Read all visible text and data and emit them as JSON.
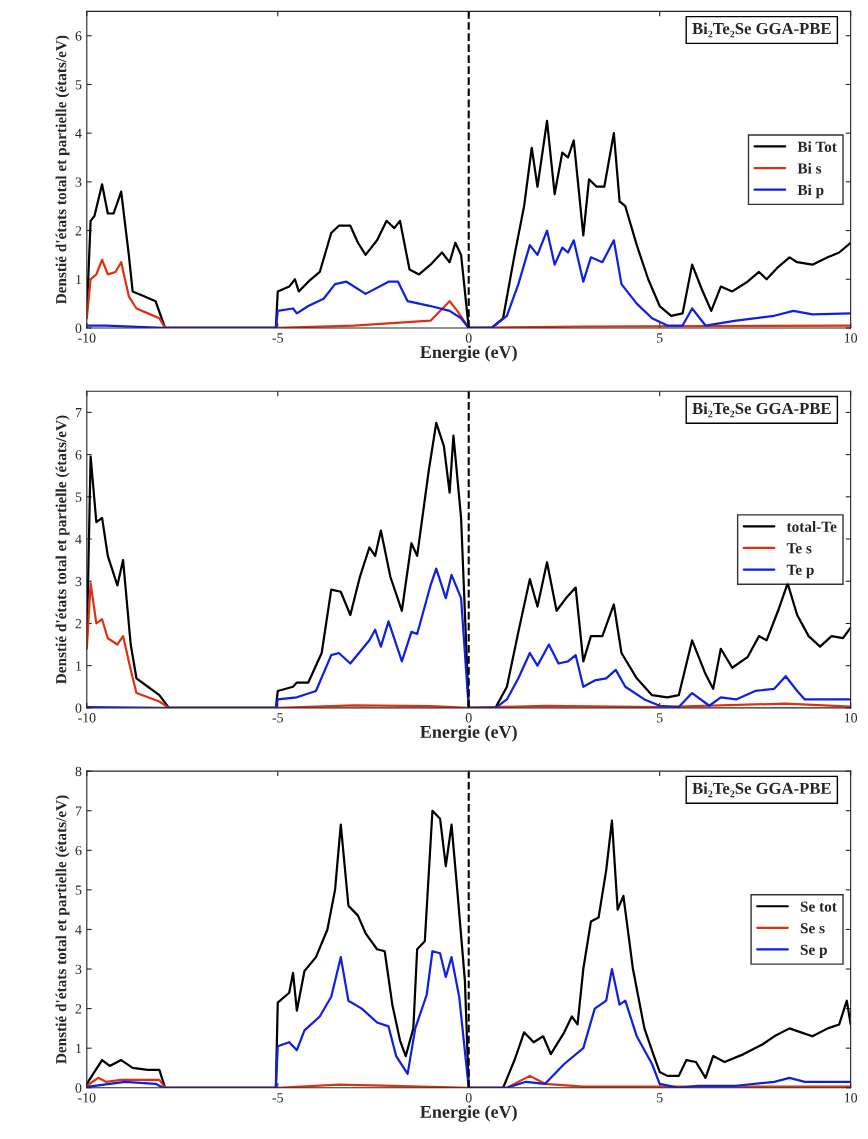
{
  "chart_data": [
    {
      "type": "line",
      "xlabel": "Energie (eV)",
      "ylabel": "Denstié d'états total et partielle (états/eV)",
      "xlim": [
        -10,
        10
      ],
      "xticks": [
        -10,
        -5,
        0,
        5,
        10
      ],
      "ylim": [
        0,
        6.5
      ],
      "yticks": [
        0,
        1,
        2,
        3,
        4,
        5,
        6
      ],
      "legend": "right",
      "annotations": [
        "Bi₂Te₂Se GGA-PBE"
      ],
      "ref_lines": [
        {
          "axis": "x",
          "value": 0,
          "color": "#000000",
          "line_style": "dashed"
        }
      ],
      "series": [
        {
          "name": "Bi Tot",
          "color": "#000000",
          "x": [
            -10,
            -9.9,
            -9.8,
            -9.6,
            -9.45,
            -9.3,
            -9.1,
            -8.9,
            -8.8,
            -8.5,
            -8.2,
            -7.95,
            -5.05,
            -5.0,
            -4.7,
            -4.55,
            -4.45,
            -4.2,
            -3.9,
            -3.6,
            -3.4,
            -3.1,
            -2.9,
            -2.7,
            -2.4,
            -2.15,
            -1.95,
            -1.8,
            -1.55,
            -1.3,
            -1.0,
            -0.7,
            -0.5,
            -0.35,
            -0.2,
            0,
            0.6,
            0.9,
            1.2,
            1.45,
            1.65,
            1.8,
            2.05,
            2.25,
            2.45,
            2.6,
            2.75,
            3.0,
            3.15,
            3.35,
            3.55,
            3.8,
            3.95,
            4.1,
            4.4,
            4.7,
            5.0,
            5.3,
            5.6,
            5.85,
            6.1,
            6.35,
            6.6,
            6.9,
            7.3,
            7.6,
            7.8,
            8.1,
            8.4,
            8.6,
            9.0,
            9.4,
            9.7,
            10
          ],
          "values": [
            0.3,
            2.2,
            2.3,
            2.95,
            2.35,
            2.35,
            2.8,
            1.5,
            0.75,
            0.65,
            0.55,
            0,
            0,
            0.75,
            0.85,
            1.0,
            0.75,
            0.95,
            1.15,
            1.95,
            2.1,
            2.1,
            1.75,
            1.5,
            1.8,
            2.2,
            2.05,
            2.2,
            1.2,
            1.1,
            1.3,
            1.55,
            1.35,
            1.75,
            1.5,
            0,
            0,
            0.2,
            1.5,
            2.5,
            3.7,
            2.9,
            4.25,
            2.75,
            3.6,
            3.5,
            3.85,
            1.9,
            3.05,
            2.9,
            2.9,
            4.0,
            2.6,
            2.5,
            1.7,
            1.0,
            0.45,
            0.25,
            0.3,
            1.3,
            0.8,
            0.35,
            0.85,
            0.75,
            0.95,
            1.15,
            1.0,
            1.25,
            1.45,
            1.35,
            1.3,
            1.45,
            1.55,
            1.75
          ]
        },
        {
          "name": "Bi s",
          "color": "#e03010",
          "x": [
            -10,
            -9.9,
            -9.75,
            -9.6,
            -9.45,
            -9.25,
            -9.1,
            -8.9,
            -8.7,
            -8.4,
            -8.1,
            -7.95,
            -5,
            -3,
            -1,
            -0.5,
            -0.3,
            0,
            3,
            10
          ],
          "values": [
            0.2,
            1.0,
            1.1,
            1.4,
            1.1,
            1.15,
            1.35,
            0.65,
            0.4,
            0.3,
            0.2,
            0,
            0,
            0.05,
            0.15,
            0.55,
            0.35,
            0,
            0.03,
            0.05
          ]
        },
        {
          "name": "Bi p",
          "color": "#1020e0",
          "x": [
            -10,
            -9.5,
            -8,
            -5.05,
            -5.0,
            -4.6,
            -4.5,
            -4.2,
            -3.8,
            -3.5,
            -3.2,
            -2.7,
            -2.1,
            -1.85,
            -1.6,
            -1.0,
            -0.5,
            -0.2,
            0,
            0.6,
            1.0,
            1.3,
            1.6,
            1.8,
            2.05,
            2.25,
            2.45,
            2.6,
            2.75,
            3.0,
            3.2,
            3.5,
            3.8,
            4.0,
            4.4,
            4.8,
            5.2,
            5.6,
            5.85,
            6.2,
            7,
            8,
            8.5,
            9,
            10
          ],
          "values": [
            0.05,
            0.05,
            0,
            0,
            0.35,
            0.4,
            0.3,
            0.45,
            0.6,
            0.9,
            0.95,
            0.7,
            0.95,
            0.95,
            0.55,
            0.45,
            0.35,
            0.2,
            0,
            0,
            0.25,
            0.9,
            1.7,
            1.5,
            2.0,
            1.3,
            1.65,
            1.55,
            1.8,
            0.95,
            1.45,
            1.35,
            1.8,
            0.9,
            0.5,
            0.2,
            0.05,
            0.05,
            0.4,
            0.05,
            0.15,
            0.25,
            0.35,
            0.28,
            0.3
          ]
        }
      ]
    },
    {
      "type": "line",
      "xlabel": "Energie (eV)",
      "ylabel": "Denstié d'états total et partielle (états/eV)",
      "xlim": [
        -10,
        10
      ],
      "xticks": [
        -10,
        -5,
        0,
        5,
        10
      ],
      "ylim": [
        0,
        7.5
      ],
      "yticks": [
        0,
        1,
        2,
        3,
        4,
        5,
        6,
        7
      ],
      "legend": "right",
      "annotations": [
        "Bi₂Te₂Se GGA-PBE"
      ],
      "ref_lines": [
        {
          "axis": "x",
          "value": 0,
          "color": "#000000",
          "line_style": "dashed"
        }
      ],
      "series": [
        {
          "name": "total-Te",
          "color": "#000000",
          "x": [
            -10,
            -9.9,
            -9.75,
            -9.6,
            -9.45,
            -9.2,
            -9.05,
            -8.85,
            -8.7,
            -8.4,
            -8.1,
            -7.85,
            -5.05,
            -5.0,
            -4.6,
            -4.5,
            -4.2,
            -3.85,
            -3.6,
            -3.35,
            -3.1,
            -2.85,
            -2.6,
            -2.45,
            -2.3,
            -2.05,
            -1.75,
            -1.5,
            -1.35,
            -1.05,
            -0.85,
            -0.65,
            -0.5,
            -0.4,
            -0.2,
            0,
            0.7,
            1.0,
            1.3,
            1.6,
            1.8,
            2.05,
            2.3,
            2.55,
            2.8,
            3.0,
            3.2,
            3.5,
            3.8,
            4.0,
            4.4,
            4.8,
            5.2,
            5.5,
            5.85,
            6.2,
            6.4,
            6.6,
            6.9,
            7.3,
            7.6,
            7.8,
            8.1,
            8.35,
            8.6,
            8.9,
            9.2,
            9.5,
            9.8,
            10
          ],
          "values": [
            1.5,
            5.95,
            4.4,
            4.5,
            3.6,
            2.9,
            3.5,
            1.5,
            0.7,
            0.5,
            0.3,
            0,
            0,
            0.4,
            0.5,
            0.6,
            0.6,
            1.3,
            2.8,
            2.75,
            2.2,
            3.1,
            3.8,
            3.6,
            4.2,
            3.1,
            2.3,
            3.9,
            3.6,
            5.6,
            6.75,
            6.2,
            5.1,
            6.45,
            4.5,
            0,
            0,
            0.5,
            1.8,
            3.05,
            2.4,
            3.45,
            2.3,
            2.6,
            2.85,
            1.1,
            1.7,
            1.7,
            2.45,
            1.3,
            0.7,
            0.3,
            0.25,
            0.3,
            1.6,
            0.8,
            0.45,
            1.4,
            0.95,
            1.2,
            1.7,
            1.6,
            2.3,
            2.95,
            2.2,
            1.7,
            1.45,
            1.7,
            1.65,
            1.9
          ]
        },
        {
          "name": "Te s",
          "color": "#e03010",
          "x": [
            -10,
            -9.9,
            -9.75,
            -9.6,
            -9.45,
            -9.2,
            -9.05,
            -8.85,
            -8.7,
            -8.4,
            -8.1,
            -7.85,
            -5,
            -3,
            -1,
            0,
            2,
            5,
            8.3,
            10
          ],
          "values": [
            1.4,
            2.95,
            2.0,
            2.1,
            1.65,
            1.5,
            1.7,
            0.9,
            0.35,
            0.25,
            0.15,
            0,
            0,
            0.06,
            0.04,
            0,
            0.05,
            0.02,
            0.1,
            0.03
          ]
        },
        {
          "name": "Te p",
          "color": "#1020e0",
          "x": [
            -10,
            -8,
            -5.05,
            -5.0,
            -4.5,
            -4.0,
            -3.6,
            -3.4,
            -3.1,
            -2.6,
            -2.45,
            -2.3,
            -2.1,
            -1.75,
            -1.5,
            -1.35,
            -1.0,
            -0.85,
            -0.6,
            -0.45,
            -0.2,
            0,
            0.7,
            1.0,
            1.3,
            1.6,
            1.8,
            2.1,
            2.35,
            2.6,
            2.8,
            3.0,
            3.3,
            3.6,
            3.85,
            4.1,
            4.6,
            5.0,
            5.5,
            5.85,
            6.3,
            6.6,
            7.0,
            7.5,
            8.0,
            8.3,
            8.6,
            8.8,
            10
          ],
          "values": [
            0.02,
            0,
            0,
            0.2,
            0.25,
            0.4,
            1.25,
            1.3,
            1.05,
            1.6,
            1.85,
            1.45,
            2.05,
            1.1,
            1.8,
            1.75,
            2.9,
            3.3,
            2.6,
            3.15,
            2.6,
            0,
            0,
            0.2,
            0.7,
            1.3,
            1.0,
            1.5,
            1.05,
            1.1,
            1.25,
            0.5,
            0.65,
            0.7,
            0.9,
            0.5,
            0.2,
            0.05,
            0.02,
            0.35,
            0.05,
            0.25,
            0.2,
            0.4,
            0.45,
            0.75,
            0.4,
            0.2,
            0.2
          ]
        }
      ]
    },
    {
      "type": "line",
      "xlabel": "Energie (eV)",
      "ylabel": "Denstié d'états total et partielle (états/eV)",
      "xlim": [
        -10,
        10
      ],
      "xticks": [
        -10,
        -5,
        0,
        5,
        10
      ],
      "ylim": [
        0,
        8
      ],
      "yticks": [
        0,
        1,
        2,
        3,
        4,
        5,
        6,
        7,
        8
      ],
      "legend": "right",
      "annotations": [
        "Bi₂Te₂Se GGA-PBE"
      ],
      "ref_lines": [
        {
          "axis": "x",
          "value": 0,
          "color": "#000000",
          "line_style": "dashed"
        }
      ],
      "series": [
        {
          "name": "Se tot",
          "color": "#000000",
          "x": [
            -10,
            -9.8,
            -9.6,
            -9.4,
            -9.1,
            -8.8,
            -8.4,
            -8.1,
            -7.95,
            -5.05,
            -5.0,
            -4.7,
            -4.6,
            -4.5,
            -4.3,
            -4.0,
            -3.7,
            -3.5,
            -3.35,
            -3.15,
            -2.9,
            -2.7,
            -2.4,
            -2.2,
            -2.0,
            -1.8,
            -1.65,
            -1.45,
            -1.35,
            -1.15,
            -0.95,
            -0.75,
            -0.6,
            -0.45,
            -0.3,
            -0.1,
            0,
            0.9,
            1.2,
            1.45,
            1.7,
            1.95,
            2.15,
            2.5,
            2.7,
            2.85,
            3.0,
            3.2,
            3.4,
            3.6,
            3.75,
            3.9,
            4.05,
            4.3,
            4.6,
            4.85,
            5.0,
            5.2,
            5.5,
            5.7,
            5.95,
            6.2,
            6.4,
            6.7,
            7.2,
            7.7,
            8.0,
            8.4,
            8.7,
            9.0,
            9.4,
            9.7,
            9.9,
            10
          ],
          "values": [
            0.1,
            0.4,
            0.7,
            0.55,
            0.7,
            0.5,
            0.45,
            0.45,
            0,
            0,
            2.15,
            2.4,
            2.9,
            1.95,
            2.95,
            3.3,
            4.0,
            5.0,
            6.65,
            4.6,
            4.35,
            3.9,
            3.5,
            3.45,
            2.1,
            1.2,
            0.8,
            1.5,
            3.5,
            3.7,
            7.0,
            6.8,
            5.6,
            6.65,
            5.0,
            2.7,
            0,
            0,
            0.7,
            1.4,
            1.15,
            1.3,
            0.85,
            1.4,
            1.8,
            1.6,
            3.0,
            4.2,
            4.3,
            5.5,
            6.75,
            4.5,
            4.85,
            3.0,
            1.5,
            0.8,
            0.4,
            0.3,
            0.3,
            0.7,
            0.65,
            0.25,
            0.8,
            0.65,
            0.85,
            1.1,
            1.3,
            1.5,
            1.4,
            1.3,
            1.5,
            1.6,
            2.2,
            1.6
          ]
        },
        {
          "name": "Se s",
          "color": "#e03010",
          "x": [
            -10,
            -9.7,
            -9.5,
            -9.1,
            -8.5,
            -8.1,
            -7.95,
            -5,
            -3.4,
            -2,
            0,
            1.0,
            1.6,
            2.0,
            3,
            10
          ],
          "values": [
            0.05,
            0.25,
            0.15,
            0.2,
            0.2,
            0.2,
            0,
            0,
            0.08,
            0.05,
            0,
            0,
            0.3,
            0.1,
            0.03,
            0.03
          ]
        },
        {
          "name": "Se p",
          "color": "#1020e0",
          "x": [
            -10,
            -9,
            -8.2,
            -8,
            -5.05,
            -5.0,
            -4.7,
            -4.5,
            -4.3,
            -3.9,
            -3.6,
            -3.35,
            -3.15,
            -2.8,
            -2.4,
            -2.1,
            -1.9,
            -1.6,
            -1.4,
            -1.1,
            -0.95,
            -0.75,
            -0.6,
            -0.45,
            -0.25,
            0,
            1.0,
            1.5,
            2.0,
            2.5,
            3.0,
            3.3,
            3.6,
            3.75,
            3.95,
            4.1,
            4.4,
            4.8,
            5.0,
            5.5,
            6,
            7,
            8,
            8.4,
            8.8,
            10
          ],
          "values": [
            0.02,
            0.15,
            0.1,
            0,
            0,
            1.05,
            1.15,
            0.95,
            1.45,
            1.8,
            2.3,
            3.3,
            2.2,
            2.0,
            1.65,
            1.55,
            0.8,
            0.35,
            1.5,
            2.35,
            3.45,
            3.4,
            2.8,
            3.3,
            2.3,
            0,
            0,
            0.15,
            0.1,
            0.6,
            1.0,
            2.0,
            2.2,
            3.0,
            2.1,
            2.2,
            1.3,
            0.6,
            0.1,
            0,
            0.05,
            0.05,
            0.15,
            0.25,
            0.15,
            0.15
          ]
        }
      ]
    }
  ]
}
